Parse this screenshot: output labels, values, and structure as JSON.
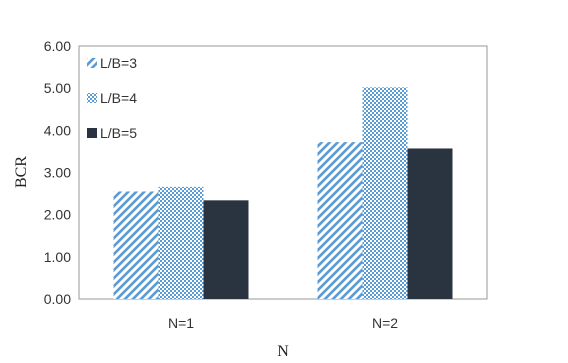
{
  "chart_data": {
    "type": "bar",
    "categories": [
      "N=1",
      "N=2"
    ],
    "series": [
      {
        "name": "L/B=3",
        "values": [
          2.55,
          3.72
        ],
        "color": "#5b9bd5",
        "pattern": "diagonal-stripes"
      },
      {
        "name": "L/B=4",
        "values": [
          2.66,
          5.02
        ],
        "color": "#5b9bd5",
        "pattern": "checker"
      },
      {
        "name": "L/B=5",
        "values": [
          2.34,
          3.57
        ],
        "color": "#2a3440",
        "pattern": "solid"
      }
    ],
    "xlabel": "N",
    "ylabel": "BCR",
    "ylim": [
      0,
      6
    ],
    "yticks": [
      "0.00",
      "1.00",
      "2.00",
      "3.00",
      "4.00",
      "5.00",
      "6.00"
    ],
    "ytick_values": [
      0,
      1,
      2,
      3,
      4,
      5,
      6
    ],
    "grid": false,
    "legend": "top-left inside"
  }
}
